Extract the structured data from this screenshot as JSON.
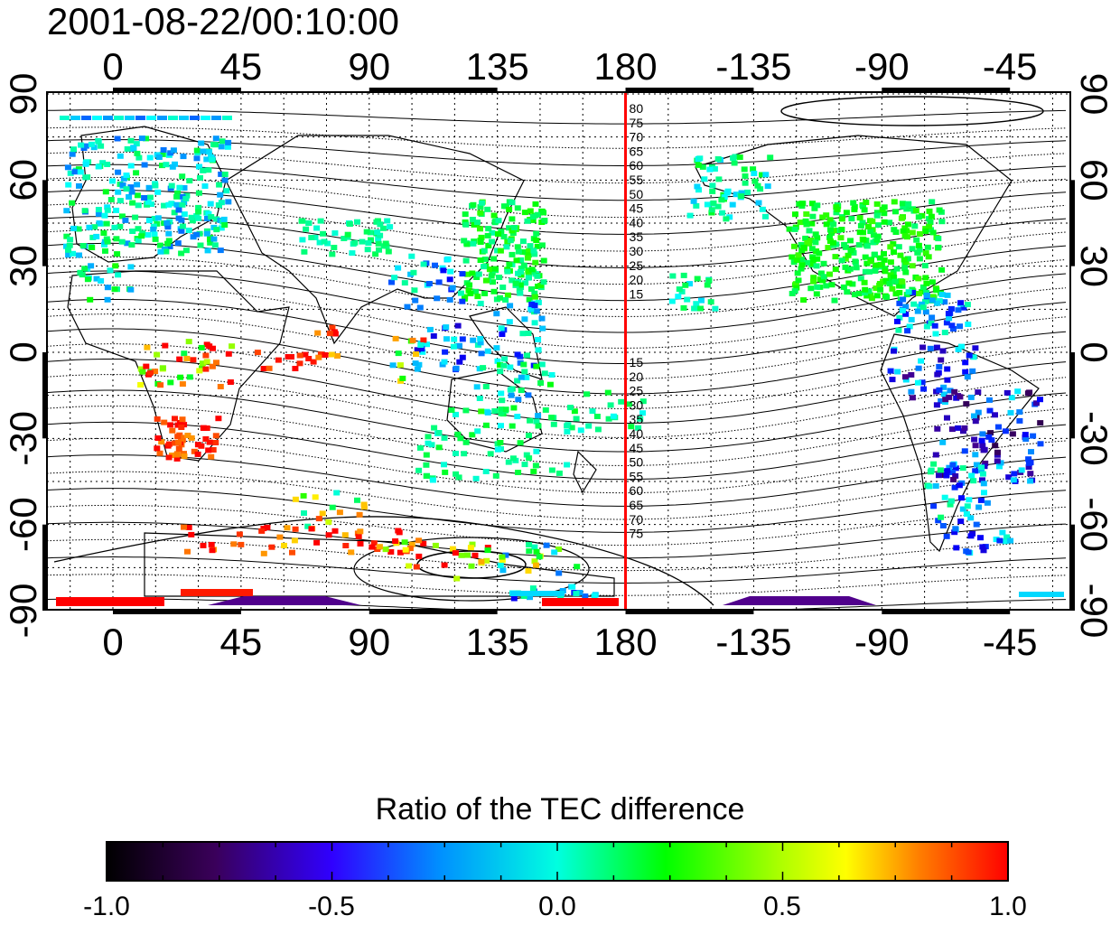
{
  "title": "2001-08-22/00:10:00",
  "map": {
    "lon_ticks": [
      "0",
      "45",
      "90",
      "135",
      "180",
      "-135",
      "-90",
      "-45"
    ],
    "lat_ticks": [
      "90",
      "60",
      "30",
      "0",
      "-30",
      "-60",
      "-90"
    ],
    "red_line_lon": "180",
    "contour_labels_north": [
      "80",
      "75",
      "70",
      "65",
      "60",
      "55",
      "50",
      "45",
      "40",
      "35",
      "30",
      "25",
      "20",
      "15"
    ],
    "contour_labels_south": [
      "15",
      "20",
      "25",
      "30",
      "35",
      "40",
      "45",
      "50",
      "55",
      "60",
      "65",
      "70",
      "75"
    ],
    "colors": {
      "red_line": "#ff0000",
      "frame": "#000000"
    }
  },
  "colorbar": {
    "title": "Ratio of the TEC difference",
    "tick_labels": [
      "-1.0",
      "-0.5",
      "0.0",
      "0.5",
      "1.0"
    ],
    "range": [
      -1.0,
      1.0
    ],
    "colormap": [
      "#000000",
      "#4b0082",
      "#0000ff",
      "#00ffff",
      "#00ff00",
      "#ffff00",
      "#ff0000"
    ]
  }
}
